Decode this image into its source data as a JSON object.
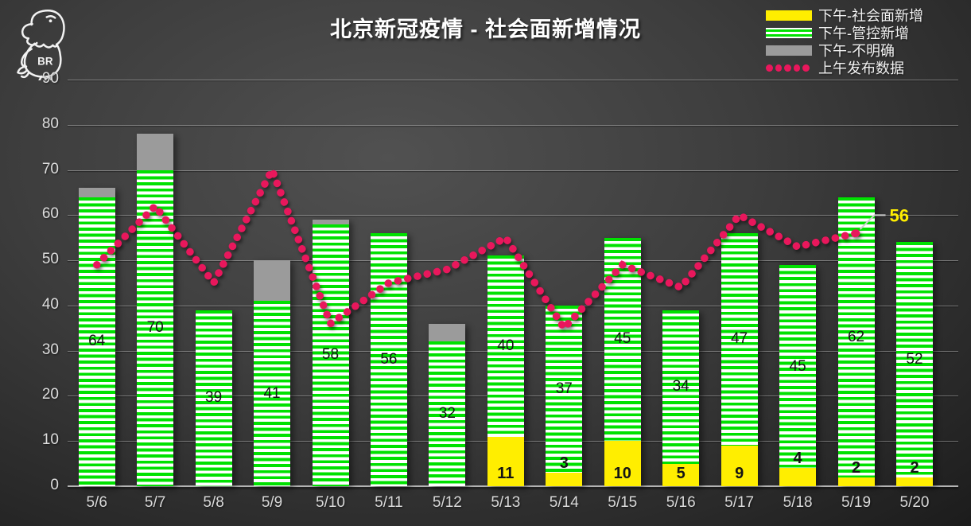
{
  "logo_text": "BR",
  "title": "北京新冠疫情 - 社会面新增情况",
  "legend": {
    "items": [
      {
        "label": "下午-社会面新增",
        "swatch": "yellow-solid"
      },
      {
        "label": "下午-管控新增",
        "swatch": "green-striped"
      },
      {
        "label": "下午-不明确",
        "swatch": "gray-solid"
      },
      {
        "label": "上午发布数据",
        "swatch": "red-dotted-line"
      }
    ]
  },
  "colors": {
    "social_yellow": "#ffee00",
    "control_green": "#00e100",
    "unclear_gray": "#9b9b9b",
    "morning_line_red": "#e9175c",
    "annotation_yellow": "#ffee00",
    "background_dark": "#3d3d3d"
  },
  "chart_data": {
    "type": "bar",
    "stacked": true,
    "title": "北京新冠疫情 - 社会面新增情况",
    "categories": [
      "5/6",
      "5/7",
      "5/8",
      "5/9",
      "5/10",
      "5/11",
      "5/12",
      "5/13",
      "5/14",
      "5/15",
      "5/16",
      "5/17",
      "5/18",
      "5/19",
      "5/20"
    ],
    "series": [
      {
        "name": "下午-社会面新增",
        "role": "bar",
        "color": "#ffee00",
        "values": [
          0,
          0,
          0,
          0,
          0,
          0,
          0,
          11,
          3,
          10,
          5,
          9,
          4,
          2,
          2
        ]
      },
      {
        "name": "下午-管控新增",
        "role": "bar",
        "color": "#00e100",
        "pattern": "horizontal-stripes",
        "values": [
          64,
          70,
          39,
          41,
          58,
          56,
          32,
          40,
          37,
          45,
          34,
          47,
          45,
          62,
          52
        ]
      },
      {
        "name": "下午-不明确",
        "role": "bar",
        "color": "#9b9b9b",
        "values": [
          2,
          8,
          0,
          9,
          1,
          0,
          4,
          0,
          0,
          0,
          0,
          0,
          0,
          0,
          0
        ]
      },
      {
        "name": "上午发布数据",
        "role": "line",
        "style": "dotted",
        "color": "#e9175c",
        "values": [
          49,
          62,
          45,
          70,
          36,
          45,
          48,
          55,
          35,
          49,
          44,
          60,
          53,
          56,
          null
        ]
      }
    ],
    "bar_totals": [
      66,
      78,
      39,
      50,
      59,
      56,
      36,
      51,
      40,
      55,
      39,
      56,
      49,
      64,
      54
    ],
    "ylim": [
      0,
      90
    ],
    "yticks": [
      0,
      10,
      20,
      30,
      40,
      50,
      60,
      70,
      80,
      90
    ],
    "grid": true,
    "legend_position": "top-right",
    "annotation": {
      "text": "56",
      "category": "5/19",
      "series": "上午发布数据"
    }
  }
}
